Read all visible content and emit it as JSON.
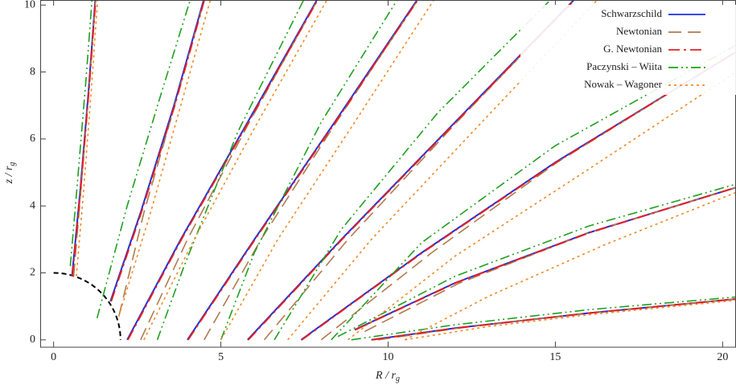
{
  "chart_data": {
    "type": "line",
    "x_label": {
      "main": "R / r",
      "sub": "g"
    },
    "y_label": {
      "main": "z / r",
      "sub": "g"
    },
    "xlim": [
      -0.4,
      20.4
    ],
    "ylim": [
      -0.22,
      10.15
    ],
    "xticks": [
      0,
      5,
      10,
      15,
      20
    ],
    "yticks": [
      0,
      2,
      4,
      6,
      8,
      10
    ],
    "legend": "top-right",
    "circle_radius": 2,
    "series": [
      {
        "name": "Schwarzschild",
        "color": "#1a2ee0",
        "style": "solid",
        "x": [
          0.55,
          0.8,
          1.05,
          1.25,
          null,
          1.7,
          2.6,
          3.6,
          4.5,
          null,
          2.2,
          3.8,
          5.8,
          7.9,
          null,
          4.0,
          6.0,
          8.4,
          10.9,
          null,
          5.8,
          8.6,
          12.0,
          15.6,
          null,
          7.4,
          11,
          15,
          20.4,
          null,
          9.0,
          12,
          16,
          20.4,
          null,
          9.5,
          12,
          16,
          20.4
        ],
        "values": [
          1.9,
          4.5,
          7.5,
          10.2,
          null,
          1.15,
          3.8,
          7,
          10.2,
          null,
          0,
          3,
          6.5,
          10.2,
          null,
          0,
          3,
          6.5,
          10.2,
          null,
          0,
          3,
          6.5,
          10.2,
          null,
          0,
          2.6,
          5.3,
          8.6,
          null,
          0.3,
          1.7,
          3.2,
          4.55,
          null,
          0,
          0.35,
          0.8,
          1.22
        ]
      },
      {
        "name": "Newtonian",
        "color": "#b07a50",
        "style": "long-dash",
        "x": [
          0.6,
          0.82,
          1.06,
          1.26,
          null,
          1.95,
          2.7,
          3.62,
          4.52,
          null,
          2.6,
          4.0,
          5.85,
          7.92,
          null,
          4.5,
          6.2,
          8.45,
          10.92,
          null,
          6.3,
          8.8,
          12.05,
          15.62,
          null,
          8.0,
          11.3,
          15.05,
          20.4,
          null,
          9.3,
          12.1,
          16,
          20.4,
          null,
          9.7,
          12.1,
          16,
          20.4
        ],
        "values": [
          1.9,
          4.5,
          7.5,
          10.2,
          null,
          0.7,
          3.8,
          7,
          10.2,
          null,
          0,
          3,
          6.5,
          10.2,
          null,
          0,
          3,
          6.5,
          10.2,
          null,
          0,
          3,
          6.5,
          10.2,
          null,
          0,
          2.6,
          5.3,
          8.6,
          null,
          0.25,
          1.68,
          3.2,
          4.55,
          null,
          0,
          0.35,
          0.8,
          1.22
        ]
      },
      {
        "name": "G. Newtonian",
        "color": "#e42020",
        "style": "dash-dot",
        "x": [
          0.56,
          0.81,
          1.06,
          1.26,
          null,
          1.72,
          2.62,
          3.62,
          4.52,
          null,
          2.22,
          3.82,
          5.82,
          7.92,
          null,
          4.02,
          6.02,
          8.42,
          10.92,
          null,
          5.82,
          8.62,
          12.02,
          15.62,
          null,
          7.42,
          11.02,
          15.02,
          20.4,
          null,
          9.02,
          12.02,
          16.02,
          20.4,
          null,
          9.52,
          12.02,
          16.02,
          20.4
        ],
        "values": [
          1.9,
          4.5,
          7.5,
          10.2,
          null,
          1.15,
          3.8,
          7,
          10.2,
          null,
          0,
          3,
          6.5,
          10.2,
          null,
          0,
          3,
          6.5,
          10.2,
          null,
          0,
          3,
          6.5,
          10.2,
          null,
          0,
          2.6,
          5.3,
          8.6,
          null,
          0.3,
          1.7,
          3.2,
          4.55,
          null,
          0,
          0.35,
          0.8,
          1.22
        ]
      },
      {
        "name": "Paczynski – Wiita",
        "color": "#1fa01f",
        "style": "dash-dot-dot",
        "x": [
          0.5,
          0.72,
          0.97,
          1.15,
          null,
          1.3,
          2.2,
          3.2,
          4.1,
          null,
          3.1,
          3.9,
          5.5,
          7.5,
          null,
          5.0,
          6.0,
          8.0,
          10.3,
          null,
          6.6,
          8.6,
          11.5,
          14.9,
          null,
          8.3,
          11,
          15,
          20.4,
          null,
          8.5,
          12,
          16,
          20.4,
          null,
          8.9,
          12,
          16,
          20.4
        ],
        "values": [
          2.2,
          4.8,
          7.8,
          10.2,
          null,
          0.65,
          4,
          7.3,
          10.2,
          null,
          0,
          2.2,
          6.2,
          10.2,
          null,
          0,
          2.6,
          6.5,
          10.2,
          null,
          0,
          3.3,
          6.8,
          10.2,
          null,
          0,
          2.9,
          5.8,
          8.8,
          null,
          0.1,
          1.9,
          3.4,
          4.65,
          null,
          0,
          0.45,
          0.9,
          1.28
        ]
      },
      {
        "name": "Nowak – Wagoner",
        "color": "#f08a28",
        "style": "dotted",
        "x": [
          0.68,
          0.9,
          1.13,
          1.32,
          null,
          1.95,
          2.9,
          3.8,
          4.7,
          null,
          2.7,
          4.2,
          6.1,
          8.2,
          null,
          5.0,
          6.7,
          9.0,
          11.4,
          null,
          7.0,
          9.5,
          12.8,
          16.3,
          null,
          8.8,
          12,
          16,
          20.4,
          null,
          10.5,
          13,
          16.5,
          20.4,
          null,
          10.5,
          13,
          16,
          20.4
        ],
        "values": [
          1.9,
          4.5,
          7.5,
          10.2,
          null,
          0.7,
          3.8,
          7,
          10.2,
          null,
          0,
          3,
          6.5,
          10.2,
          null,
          0,
          3,
          6.5,
          10.2,
          null,
          0,
          3,
          6.5,
          10.2,
          null,
          0,
          2.5,
          5.1,
          8.0,
          null,
          0,
          1.3,
          2.85,
          4.4,
          null,
          0,
          0.4,
          0.75,
          1.18
        ]
      }
    ]
  }
}
